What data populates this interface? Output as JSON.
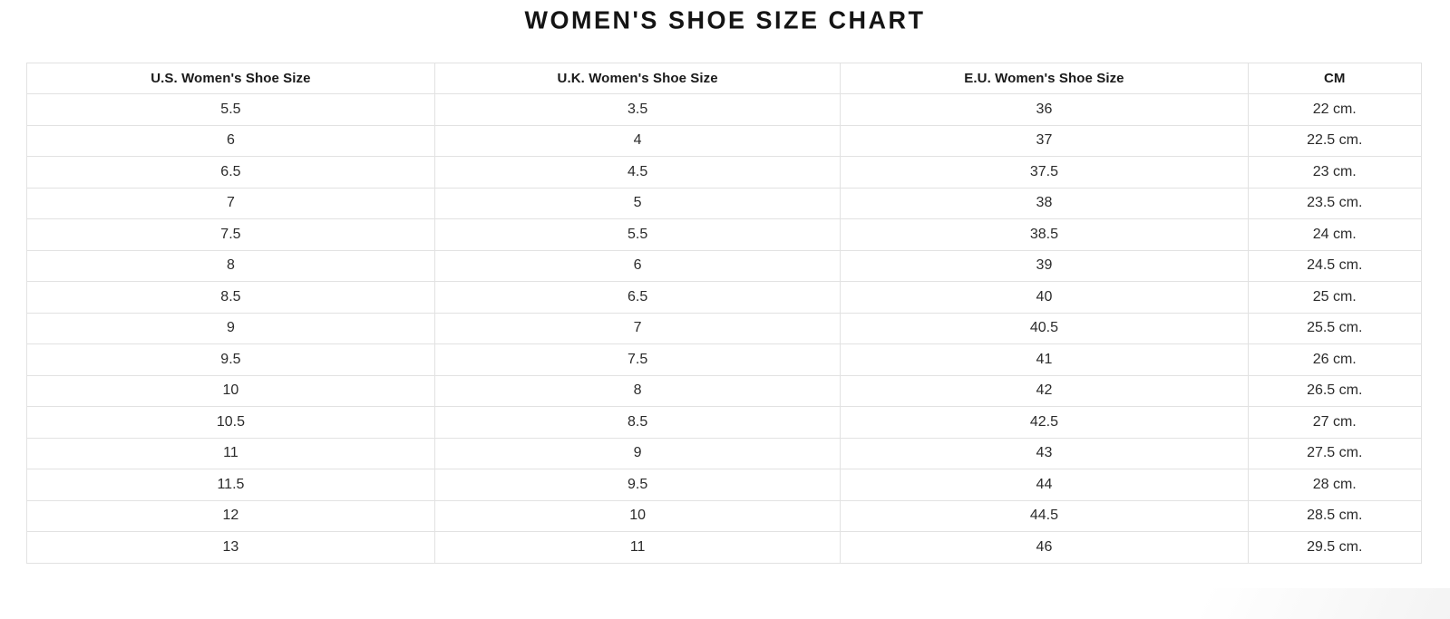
{
  "page": {
    "title": "WOMEN'S SHOE SIZE CHART"
  },
  "chart_data": {
    "type": "table",
    "title": "WOMEN'S SHOE SIZE CHART",
    "columns": [
      "U.S. Women's Shoe Size",
      "U.K. Women's Shoe Size",
      "E.U. Women's Shoe Size",
      "CM"
    ],
    "rows": [
      [
        "5.5",
        "3.5",
        "36",
        "22 cm."
      ],
      [
        "6",
        "4",
        "37",
        "22.5 cm."
      ],
      [
        "6.5",
        "4.5",
        "37.5",
        "23 cm."
      ],
      [
        "7",
        "5",
        "38",
        "23.5 cm."
      ],
      [
        "7.5",
        "5.5",
        "38.5",
        "24 cm."
      ],
      [
        "8",
        "6",
        "39",
        "24.5 cm."
      ],
      [
        "8.5",
        "6.5",
        "40",
        "25 cm."
      ],
      [
        "9",
        "7",
        "40.5",
        "25.5 cm."
      ],
      [
        "9.5",
        "7.5",
        "41",
        "26 cm."
      ],
      [
        "10",
        "8",
        "42",
        "26.5 cm."
      ],
      [
        "10.5",
        "8.5",
        "42.5",
        "27 cm."
      ],
      [
        "11",
        "9",
        "43",
        "27.5 cm."
      ],
      [
        "11.5",
        "9.5",
        "44",
        "28 cm."
      ],
      [
        "12",
        "10",
        "44.5",
        "28.5 cm."
      ],
      [
        "13",
        "11",
        "46",
        "29.5 cm."
      ]
    ]
  },
  "colors": {
    "background": "#ffffff",
    "grid_border": "#e2e2e2",
    "title_text": "#141414",
    "header_text": "#1a1a1a",
    "cell_text": "#2b2b2b"
  }
}
